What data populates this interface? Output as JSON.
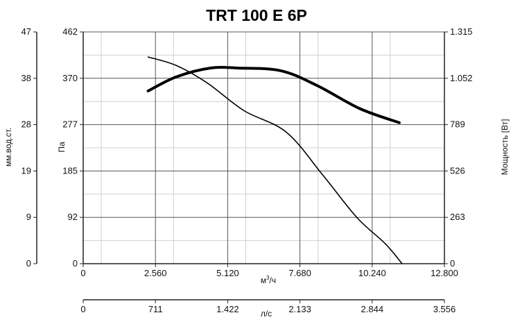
{
  "chart_data": {
    "type": "line",
    "title": "TRT 100 E 6P",
    "x_axis_primary": {
      "label": "м³/ч",
      "label_base": "м",
      "label_sup": "3",
      "label_tail": "/ч",
      "ticks": [
        "0",
        "2.560",
        "5.120",
        "7.680",
        "10.240",
        "12.800"
      ],
      "range": [
        0,
        12800
      ]
    },
    "x_axis_secondary": {
      "label": "л/с",
      "ticks": [
        "0",
        "711",
        "1.422",
        "2.133",
        "2.844",
        "3.556"
      ],
      "range": [
        0,
        3556
      ]
    },
    "y_axis_pa": {
      "label": "Па",
      "ticks": [
        "0",
        "92",
        "185",
        "277",
        "370",
        "462"
      ],
      "range": [
        0,
        462
      ]
    },
    "y_axis_mm": {
      "label": "мм.вод.ст.",
      "ticks": [
        "0",
        "9",
        "19",
        "28",
        "38",
        "47"
      ],
      "range": [
        0,
        47
      ]
    },
    "y_axis_power": {
      "label": "Мощность [Вт]",
      "ticks": [
        "0",
        "263",
        "526",
        "789",
        "1.052",
        "1.315"
      ],
      "range": [
        0,
        1315
      ]
    },
    "grid": true,
    "series": [
      {
        "axis": "pa",
        "style": "thin",
        "x": [
          2300,
          3300,
          4400,
          5700,
          7200,
          8500,
          9700,
          10700,
          11300
        ],
        "y": [
          412,
          395,
          360,
          305,
          262,
          176,
          92,
          40,
          0
        ]
      },
      {
        "axis": "power",
        "style": "thick",
        "x": [
          2300,
          3300,
          4500,
          5500,
          7000,
          8300,
          9800,
          11200
        ],
        "y": [
          980,
          1060,
          1110,
          1110,
          1095,
          1010,
          880,
          800
        ]
      }
    ]
  }
}
